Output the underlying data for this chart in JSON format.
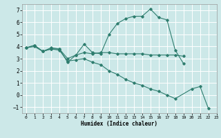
{
  "xlabel": "Humidex (Indice chaleur)",
  "bg_color": "#cce8e8",
  "grid_color": "#ffffff",
  "line_color": "#2e7d6e",
  "xlim": [
    -0.5,
    23
  ],
  "ylim": [
    -1.5,
    7.5
  ],
  "yticks": [
    -1,
    0,
    1,
    2,
    3,
    4,
    5,
    6,
    7
  ],
  "xticks": [
    0,
    1,
    2,
    3,
    4,
    5,
    6,
    7,
    8,
    9,
    10,
    11,
    12,
    13,
    14,
    15,
    16,
    17,
    18,
    19,
    20,
    21,
    22,
    23
  ],
  "series": [
    {
      "x": [
        0,
        1,
        2,
        3,
        4,
        5,
        6,
        7,
        8,
        9,
        10,
        11,
        12,
        13,
        14,
        15,
        16,
        17,
        18,
        19
      ],
      "y": [
        3.9,
        4.1,
        3.6,
        3.8,
        3.8,
        3.0,
        3.3,
        4.2,
        3.5,
        3.4,
        5.0,
        5.9,
        6.3,
        6.5,
        6.5,
        7.1,
        6.4,
        6.2,
        3.7,
        2.6
      ]
    },
    {
      "x": [
        0,
        1,
        2,
        3,
        4,
        5,
        6,
        7,
        8,
        9,
        10,
        11,
        12,
        13,
        14,
        15,
        16,
        17,
        18,
        19
      ],
      "y": [
        3.9,
        4.1,
        3.6,
        3.9,
        3.8,
        2.7,
        3.3,
        3.5,
        3.4,
        3.5,
        3.5,
        3.4,
        3.4,
        3.4,
        3.4,
        3.3,
        3.3,
        3.3,
        3.3,
        3.2
      ]
    },
    {
      "x": [
        0,
        1,
        2,
        3,
        4,
        5,
        6,
        7,
        8,
        9,
        10,
        11,
        12,
        13,
        14,
        15,
        16,
        17,
        18,
        20,
        21,
        22
      ],
      "y": [
        3.9,
        4.0,
        3.6,
        3.8,
        3.7,
        2.8,
        2.9,
        3.0,
        2.7,
        2.5,
        2.0,
        1.7,
        1.3,
        1.0,
        0.8,
        0.5,
        0.3,
        0.0,
        -0.3,
        0.5,
        0.7,
        -1.1
      ]
    }
  ]
}
